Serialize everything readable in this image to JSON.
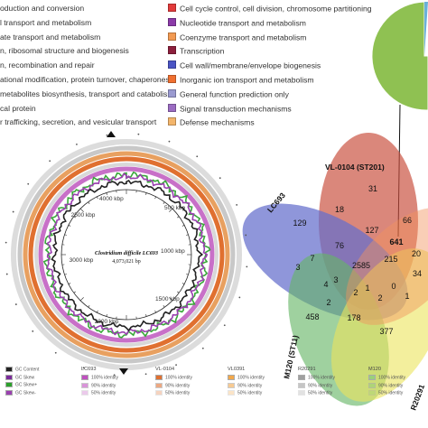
{
  "cog_categories": [
    {
      "label": "oduction and conversion",
      "color": ""
    },
    {
      "label": "l transport and metabolism",
      "color": ""
    },
    {
      "label": "ate transport and metabolism",
      "color": ""
    },
    {
      "label": "n, ribosomal structure and biogenesis",
      "color": ""
    },
    {
      "label": "n, recombination and repair",
      "color": ""
    },
    {
      "label": "ational modification, protein turnover, chaperones",
      "color": ""
    },
    {
      "label": "metabolites biosynthesis, transport and catabolism",
      "color": ""
    },
    {
      "label": "cal protein",
      "color": ""
    },
    {
      "label": "r trafficking, secretion, and vesicular transport",
      "color": ""
    },
    {
      "label": "Cell cycle control, cell division, chromosome partitioning",
      "color": "#e23a3a"
    },
    {
      "label": "Nucleotide transport and metabolism",
      "color": "#8b3aa8"
    },
    {
      "label": "Coenzyme transport and metabolism",
      "color": "#f29a52"
    },
    {
      "label": "Transcription",
      "color": "#8c1f3c"
    },
    {
      "label": "Cell wall/membrane/envelope biogenesis",
      "color": "#4a54c4"
    },
    {
      "label": "Inorganic ion transport and metabolism",
      "color": "#f07030"
    },
    {
      "label": "General function prediction only",
      "color": "#9a9ad0"
    },
    {
      "label": "Signal transduction mechanisms",
      "color": "#9b6cc2"
    },
    {
      "label": "Defense mechanisms",
      "color": "#f3b56b"
    }
  ],
  "pie": {
    "slice_colors": [
      "#8fc152",
      "#6ab0d9",
      "#e8e8e8"
    ]
  },
  "genome_map": {
    "title": "Clostridium difficile LC693",
    "size": "4,073,021 bp",
    "tick_labels": [
      "4000 kbp",
      "2500 kbp",
      "500 kbp",
      "3000 kbp",
      "1000 kbp",
      "1500 kbp",
      "2000 kbp"
    ],
    "ring_colors": [
      "#cccccc",
      "#e8a060",
      "#e07030",
      "#d3d3d3",
      "#c878c8",
      "#a0c070"
    ]
  },
  "venn": {
    "sets": [
      {
        "name": "VL-0104 (ST201)",
        "color": "#c84a3a"
      },
      {
        "name": "LC693",
        "color": "#4a54c4"
      },
      {
        "name": "M120 (ST11)",
        "color": "#4aa84a"
      },
      {
        "name": "R20291",
        "color": "#e8e040"
      }
    ],
    "values": [
      "31",
      "18",
      "66",
      "129",
      "127",
      "641",
      "76",
      "20",
      "7",
      "215",
      "2585",
      "3",
      "34",
      "458",
      "2",
      "178",
      "377",
      "0",
      "4",
      "3",
      "1",
      "2",
      "1",
      "2"
    ]
  },
  "map_legend": {
    "gc_items": [
      "GC Content",
      "GC Skew",
      "GC Skew+",
      "GC Skew-"
    ],
    "columns": [
      {
        "title": "LC693",
        "items": [
          "100% identity",
          "90% identity",
          "50% identity"
        ]
      },
      {
        "title": "VL-0104",
        "items": [
          "100% identity",
          "90% identity",
          "50% identity"
        ]
      },
      {
        "title": "VL0391",
        "items": [
          "100% identity",
          "90% identity",
          "50% identity"
        ]
      },
      {
        "title": "R20291",
        "items": [
          "100% identity",
          "90% identity",
          "50% identity"
        ]
      },
      {
        "title": "M120",
        "items": [
          "100% identity",
          "90% identity",
          "50% identity"
        ]
      }
    ],
    "column_colors": [
      "#c050c0",
      "#e07030",
      "#f2a84a",
      "#a0a0a0",
      "#9ad07a"
    ]
  }
}
